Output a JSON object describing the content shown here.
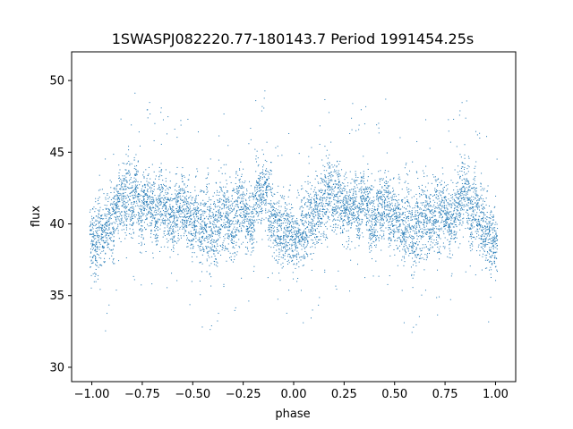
{
  "chart_data": {
    "type": "scatter",
    "title": "1SWASPJ082220.77-180143.7 Period 1991454.25s",
    "xlabel": "phase",
    "ylabel": "flux",
    "xlim": [
      -1.1,
      1.1
    ],
    "ylim": [
      29.0,
      52.0
    ],
    "xticks": [
      -1.0,
      -0.75,
      -0.5,
      -0.25,
      0.0,
      0.25,
      0.5,
      0.75,
      1.0
    ],
    "xtick_labels": [
      "−1.00",
      "−0.75",
      "−0.50",
      "−0.25",
      "0.00",
      "0.25",
      "0.50",
      "0.75",
      "1.00"
    ],
    "yticks": [
      30,
      35,
      40,
      45,
      50
    ],
    "ytick_labels": [
      "30",
      "35",
      "40",
      "45",
      "50"
    ],
    "grid": false,
    "marker_color": "#1f77b4",
    "series": [
      {
        "x": [
          -1.0,
          -0.98,
          -0.96,
          -0.94,
          -0.92,
          -0.9,
          -0.88,
          -0.86,
          -0.84,
          -0.82,
          -0.8,
          -0.78,
          -0.76,
          -0.74,
          -0.72,
          -0.7,
          -0.68,
          -0.66,
          -0.64,
          -0.62,
          -0.6,
          -0.58,
          -0.56,
          -0.54,
          -0.52,
          -0.5,
          -0.48,
          -0.46,
          -0.44,
          -0.42,
          -0.4,
          -0.38,
          -0.36,
          -0.34,
          -0.32,
          -0.3,
          -0.28,
          -0.26,
          -0.24,
          -0.22,
          -0.2,
          -0.18,
          -0.16,
          -0.14,
          -0.12,
          -0.1,
          -0.08,
          -0.06,
          -0.04,
          -0.02,
          0.0,
          0.02,
          0.04,
          0.06,
          0.08,
          0.1,
          0.12,
          0.14,
          0.16,
          0.18,
          0.2,
          0.22,
          0.24,
          0.26,
          0.28,
          0.3,
          0.32,
          0.34,
          0.36,
          0.38,
          0.4,
          0.42,
          0.44,
          0.46,
          0.48,
          0.5,
          0.52,
          0.54,
          0.56,
          0.58,
          0.6,
          0.62,
          0.64,
          0.66,
          0.68,
          0.7,
          0.72,
          0.74,
          0.76,
          0.78,
          0.8,
          0.82,
          0.84,
          0.86,
          0.88,
          0.9,
          0.92,
          0.94,
          0.96,
          0.98,
          1.0
        ],
        "y": [
          39.0,
          38.8,
          39.5,
          39.3,
          40.1,
          39.8,
          41.0,
          41.5,
          41.8,
          42.2,
          41.2,
          42.5,
          40.8,
          41.5,
          41.9,
          41.3,
          40.6,
          41.7,
          41.0,
          40.7,
          40.2,
          40.9,
          41.4,
          41.1,
          40.4,
          40.0,
          40.6,
          39.4,
          40.3,
          39.6,
          39.1,
          39.8,
          40.5,
          40.9,
          40.2,
          39.9,
          40.8,
          41.6,
          40.9,
          40.1,
          40.7,
          42.2,
          41.8,
          42.5,
          41.4,
          40.2,
          39.6,
          39.3,
          39.8,
          39.4,
          38.8,
          39.1,
          39.7,
          39.6,
          40.4,
          40.2,
          40.9,
          41.2,
          41.9,
          42.5,
          41.6,
          42.1,
          41.3,
          41.4,
          40.8,
          42.0,
          40.5,
          41.7,
          41.4,
          40.6,
          40.0,
          41.2,
          40.9,
          41.8,
          40.4,
          40.6,
          40.2,
          39.7,
          40.3,
          39.4,
          39.0,
          40.1,
          40.3,
          40.5,
          40.0,
          40.8,
          40.3,
          41.3,
          40.7,
          40.2,
          40.9,
          41.5,
          42.2,
          41.8,
          40.7,
          41.3,
          40.5,
          39.9,
          39.2,
          38.9,
          38.7
        ],
        "spread": [
          1.8,
          2.3,
          2.5,
          2.2,
          2.0,
          2.3,
          1.9,
          2.4,
          2.2,
          2.6,
          2.1,
          2.3,
          2.0,
          2.2,
          1.9,
          2.0,
          2.1,
          2.3,
          2.0,
          1.9,
          1.8,
          2.1,
          2.0,
          2.2,
          2.0,
          2.1,
          2.3,
          2.5,
          2.4,
          2.6,
          2.4,
          2.5,
          2.3,
          2.2,
          2.4,
          2.6,
          2.5,
          2.3,
          2.1,
          2.2,
          2.4,
          2.2,
          2.0,
          2.3,
          2.4,
          2.2,
          2.1,
          2.6,
          2.3,
          2.2,
          2.0,
          2.3,
          2.4,
          2.2,
          2.1,
          2.3,
          2.0,
          2.2,
          2.4,
          2.5,
          2.2,
          2.0,
          2.1,
          2.2,
          2.0,
          1.9,
          2.1,
          1.8,
          2.0,
          2.1,
          1.8,
          2.0,
          2.2,
          2.1,
          2.0,
          2.2,
          2.3,
          2.4,
          2.6,
          2.5,
          2.4,
          2.5,
          2.3,
          2.4,
          2.2,
          2.3,
          2.5,
          2.2,
          2.1,
          2.3,
          2.2,
          2.0,
          2.4,
          2.3,
          2.1,
          2.2,
          2.4,
          2.5,
          2.3,
          2.2,
          2.1
        ]
      }
    ]
  }
}
